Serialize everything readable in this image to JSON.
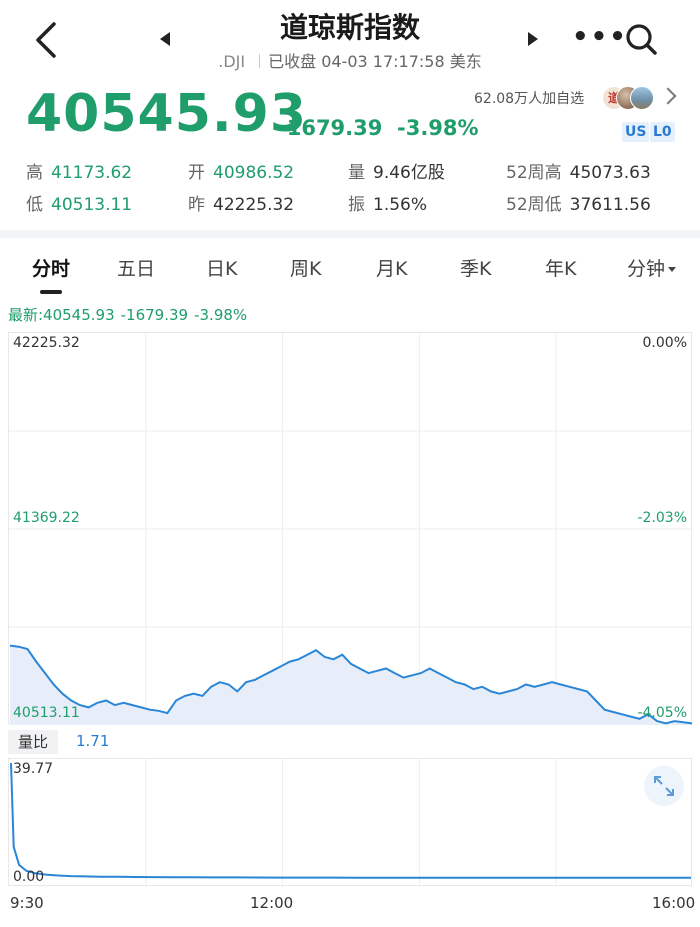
{
  "header": {
    "title": "道琼斯指数",
    "code": ".DJI",
    "status": "已收盘 04-03 17:17:58 美东"
  },
  "quote": {
    "price": "40545.93",
    "change": "-1679.39",
    "change_pct": "-3.98%",
    "watchers": "62.08万人加自选",
    "avatar_badge": "道",
    "tags": [
      "US",
      "L0"
    ]
  },
  "stats": {
    "high": {
      "label": "高",
      "value": "41173.62"
    },
    "open": {
      "label": "开",
      "value": "40986.52"
    },
    "volume": {
      "label": "量",
      "value": "9.46亿股"
    },
    "week52_high": {
      "label": "52周高",
      "value": "45073.63"
    },
    "low": {
      "label": "低",
      "value": "40513.11"
    },
    "prev_close": {
      "label": "昨",
      "value": "42225.32"
    },
    "amplitude": {
      "label": "振",
      "value": "1.56%"
    },
    "week52_low": {
      "label": "52周低",
      "value": "37611.56"
    }
  },
  "tabs": [
    {
      "label": "分时"
    },
    {
      "label": "五日"
    },
    {
      "label": "日K"
    },
    {
      "label": "周K"
    },
    {
      "label": "月K"
    },
    {
      "label": "季K"
    },
    {
      "label": "年K"
    },
    {
      "label": "分钟"
    }
  ],
  "latest": {
    "prefix": "最新:40545.93",
    "change": "-1679.39",
    "pct": "-3.98%"
  },
  "chart_data": [
    {
      "type": "area",
      "axis_left": [
        "42225.32",
        "41369.22",
        "40513.11"
      ],
      "axis_right": [
        "0.00%",
        "-2.03%",
        "-4.05%"
      ],
      "ylim": [
        40513.11,
        42225.32
      ],
      "x_labels": [
        "9:30",
        "12:00",
        "16:00"
      ],
      "x": [
        0,
        5,
        10,
        15,
        20,
        25,
        30,
        35,
        40,
        45,
        50,
        55,
        60,
        65,
        70,
        75,
        80,
        85,
        90,
        95,
        100,
        105,
        110,
        115,
        120,
        125,
        130,
        135,
        140,
        145,
        150,
        155,
        160,
        165,
        170,
        175,
        180,
        185,
        190,
        195,
        200,
        205,
        210,
        215,
        220,
        225,
        230,
        235,
        240,
        245,
        250,
        255,
        260,
        265,
        270,
        275,
        280,
        285,
        290,
        295,
        300,
        305,
        310,
        315,
        320,
        325,
        330,
        335,
        340,
        345,
        350,
        355,
        360,
        365,
        370,
        375,
        380,
        385,
        390
      ],
      "values": [
        40860,
        40855,
        40845,
        40790,
        40740,
        40690,
        40650,
        40620,
        40600,
        40590,
        40610,
        40620,
        40600,
        40610,
        40600,
        40590,
        40580,
        40575,
        40565,
        40620,
        40640,
        40650,
        40640,
        40680,
        40700,
        40690,
        40660,
        40700,
        40710,
        40730,
        40750,
        40770,
        40790,
        40800,
        40820,
        40840,
        40810,
        40800,
        40820,
        40780,
        40760,
        40740,
        40750,
        40760,
        40740,
        40720,
        40730,
        40740,
        40760,
        40740,
        40720,
        40700,
        40690,
        40670,
        40680,
        40660,
        40650,
        40660,
        40670,
        40690,
        40680,
        40690,
        40700,
        40690,
        40680,
        40670,
        40660,
        40620,
        40580,
        40570,
        40560,
        40550,
        40540,
        40560,
        40530,
        40520,
        40530,
        40525,
        40520
      ]
    },
    {
      "type": "area",
      "title": "量比",
      "current": "1.71",
      "axis_left": [
        "39.77",
        "0.00"
      ],
      "ylim": [
        0,
        39.77
      ],
      "values": [
        39.77,
        12,
        6,
        4,
        3.2,
        2.8,
        2.5,
        2.3,
        2.2,
        2.1,
        2.05,
        2.0,
        1.95,
        1.9,
        1.88,
        1.86,
        1.84,
        1.82,
        1.8,
        1.79,
        1.78,
        1.77,
        1.76,
        1.75,
        1.74,
        1.74,
        1.73,
        1.73,
        1.72,
        1.72,
        1.72,
        1.71,
        1.71
      ]
    }
  ],
  "colors": {
    "down": "#1f9d6b",
    "line": "#2a86d6",
    "fill": "#e7eef9"
  },
  "icons": [
    "back-chevron-icon",
    "prev-triangle-icon",
    "next-triangle-icon",
    "more-dots-icon",
    "search-icon",
    "expand-arrows-icon",
    "chevron-right-icon"
  ]
}
